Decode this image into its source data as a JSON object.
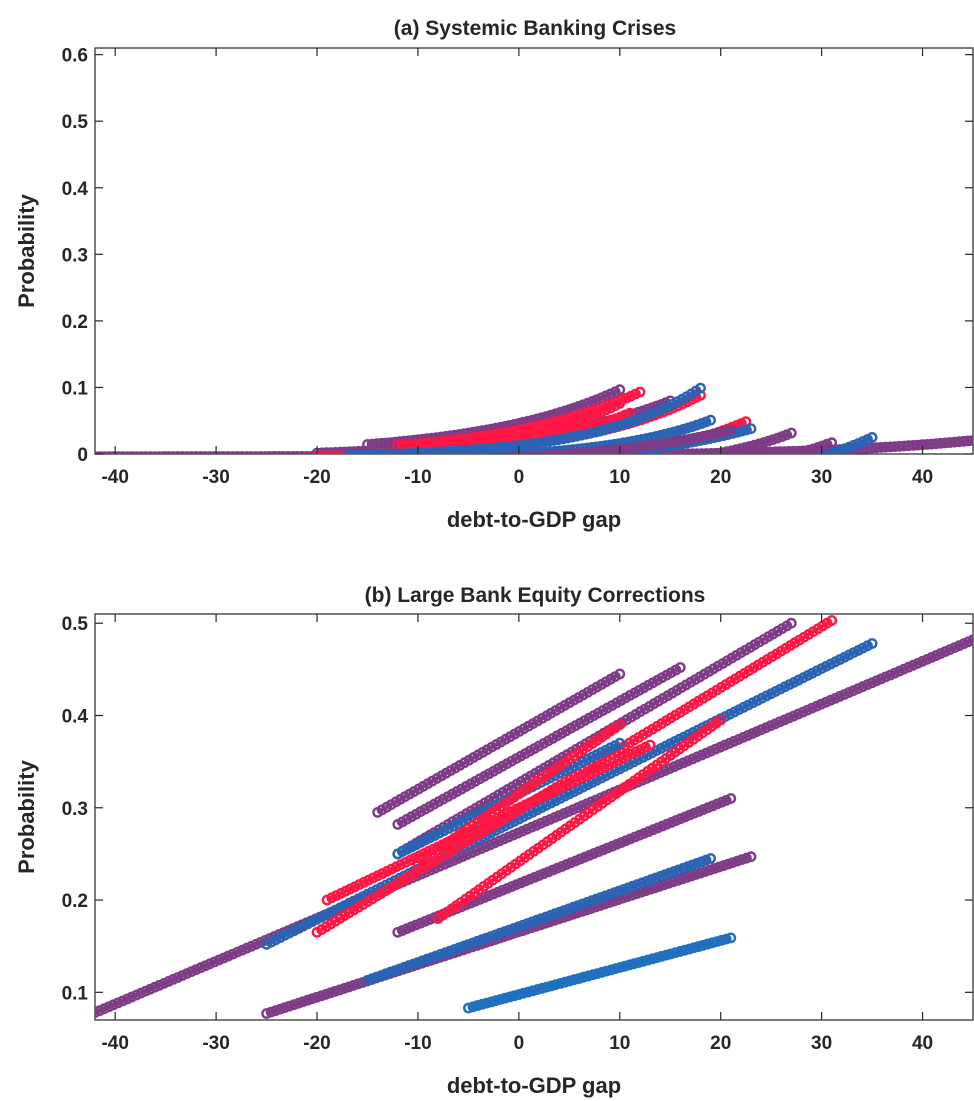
{
  "colors": {
    "blue": "#2a63b3",
    "purple": "#7e3b86",
    "red": "#ff1744",
    "axis": "#262626"
  },
  "chart_data": [
    {
      "type": "scatter",
      "title": "(a) Systemic Banking Crises",
      "xlabel": "debt-to-GDP gap",
      "ylabel": "Probability",
      "xlim": [
        -42,
        45
      ],
      "ylim": [
        0,
        0.61
      ],
      "xticks": [
        -40,
        -30,
        -20,
        -10,
        0,
        10,
        20,
        30,
        40
      ],
      "yticks": [
        0,
        0.1,
        0.2,
        0.3,
        0.4,
        0.5,
        0.6
      ],
      "xtick_labels": [
        "-40",
        "-30",
        "-20",
        "-10",
        "0",
        "10",
        "20",
        "30",
        "40"
      ],
      "ytick_labels": [
        "0",
        "0.1",
        "0.2",
        "0.3",
        "0.4",
        "0.5",
        "0.6"
      ],
      "grid": false,
      "series": [
        {
          "model": "exp",
          "x0": -42,
          "x1": 45,
          "a": 0.0015,
          "b": 0.062,
          "c": 0.004,
          "color": "#7e3b86"
        },
        {
          "model": "exp",
          "x0": -22,
          "x1": 35,
          "a": 0.0035,
          "b": 0.089,
          "c": 0.054,
          "color": "#2a63b3"
        },
        {
          "model": "exp",
          "x0": -18,
          "x1": 31,
          "a": 0.0032,
          "b": 0.094,
          "c": 0.042,
          "color": "#7e3b86"
        },
        {
          "model": "exp",
          "x0": -15,
          "x1": 27,
          "a": 0.004,
          "b": 0.1,
          "c": 0.028,
          "color": "#7e3b86"
        },
        {
          "model": "exp",
          "x0": -20,
          "x1": 22.5,
          "a": 0.006,
          "b": 0.105,
          "c": 0.015,
          "color": "#ff1744"
        },
        {
          "model": "exp",
          "x0": -15,
          "x1": 19,
          "a": 0.01,
          "b": 0.095,
          "c": 0.01,
          "color": "#2a63b3"
        },
        {
          "model": "exp",
          "x0": -25,
          "x1": 23,
          "a": 0.012,
          "b": 0.07,
          "c": 0.022,
          "color": "#2a63b3"
        },
        {
          "model": "exp",
          "x0": -20,
          "x1": 21,
          "a": 0.011,
          "b": 0.074,
          "c": 0.016,
          "color": "#7e3b86"
        },
        {
          "model": "exp",
          "x0": -20,
          "x1": 15,
          "a": 0.03,
          "b": 0.07,
          "c": 0.006,
          "color": "#7e3b86"
        },
        {
          "model": "exp",
          "x0": -15,
          "x1": 10,
          "a": 0.048,
          "b": 0.072,
          "c": 0.002,
          "color": "#7e3b86"
        },
        {
          "model": "exp",
          "x0": -10,
          "x1": 10,
          "a": 0.035,
          "b": 0.09,
          "c": 0.01,
          "color": "#ff1744"
        },
        {
          "model": "exp",
          "x0": -20,
          "x1": 18,
          "a": 0.022,
          "b": 0.082,
          "c": 0.008,
          "color": "#ff1744"
        },
        {
          "model": "exp",
          "x0": -12,
          "x1": 12,
          "a": 0.04,
          "b": 0.074,
          "c": 0.004,
          "color": "#ff1744"
        },
        {
          "model": "exp",
          "x0": -12,
          "x1": 11,
          "a": 0.03,
          "b": 0.085,
          "c": 0.015,
          "color": "#ff1744"
        },
        {
          "model": "exp",
          "x0": -17,
          "x1": 18,
          "a": 0.019,
          "b": 0.095,
          "c": 0.006,
          "color": "#2a63b3"
        }
      ]
    },
    {
      "type": "scatter",
      "title": "(b) Large Bank Equity Corrections",
      "xlabel": "debt-to-GDP gap",
      "ylabel": "Probability",
      "xlim": [
        -42,
        45
      ],
      "ylim": [
        0.07,
        0.51
      ],
      "xticks": [
        -40,
        -30,
        -20,
        -10,
        0,
        10,
        20,
        30,
        40
      ],
      "yticks": [
        0.1,
        0.2,
        0.3,
        0.4,
        0.5
      ],
      "xtick_labels": [
        "-40",
        "-30",
        "-20",
        "-10",
        "0",
        "10",
        "20",
        "30",
        "40"
      ],
      "ytick_labels": [
        "0.1",
        "0.2",
        "0.3",
        "0.4",
        "0.5"
      ],
      "grid": false,
      "series": [
        {
          "model": "line",
          "x0": -42,
          "x1": 45,
          "y0": 0.078,
          "y1": 0.482,
          "color": "#7e3b86"
        },
        {
          "model": "line",
          "x0": -25,
          "x1": 23,
          "y0": 0.077,
          "y1": 0.247,
          "color": "#7e3b86"
        },
        {
          "model": "line",
          "x0": -15,
          "x1": 19,
          "y0": 0.113,
          "y1": 0.245,
          "color": "#2a63b3"
        },
        {
          "model": "line",
          "x0": -5,
          "x1": 21,
          "y0": 0.083,
          "y1": 0.159,
          "color": "#1f6fbf"
        },
        {
          "model": "line",
          "x0": -12,
          "x1": 21,
          "y0": 0.165,
          "y1": 0.31,
          "color": "#7e3b86"
        },
        {
          "model": "line",
          "x0": -25,
          "x1": 35,
          "y0": 0.152,
          "y1": 0.478,
          "color": "#2a63b3"
        },
        {
          "model": "line",
          "x0": -20,
          "x1": 31,
          "y0": 0.165,
          "y1": 0.503,
          "color": "#ff1744"
        },
        {
          "model": "line",
          "x0": -19,
          "x1": 13,
          "y0": 0.2,
          "y1": 0.368,
          "color": "#ff1744"
        },
        {
          "model": "line",
          "x0": -12,
          "x1": 27,
          "y0": 0.25,
          "y1": 0.5,
          "color": "#7e3b86"
        },
        {
          "model": "line",
          "x0": -14,
          "x1": 10,
          "y0": 0.295,
          "y1": 0.445,
          "color": "#7e3b86"
        },
        {
          "model": "line",
          "x0": -12,
          "x1": 16,
          "y0": 0.282,
          "y1": 0.452,
          "color": "#7e3b86"
        },
        {
          "model": "line",
          "x0": -12,
          "x1": 10,
          "y0": 0.25,
          "y1": 0.37,
          "color": "#2a63b3"
        },
        {
          "model": "line",
          "x0": -10,
          "x1": 10,
          "y0": 0.24,
          "y1": 0.39,
          "color": "#ff1744"
        },
        {
          "model": "line",
          "x0": -8,
          "x1": 20,
          "y0": 0.18,
          "y1": 0.395,
          "color": "#ff1744"
        }
      ]
    }
  ]
}
